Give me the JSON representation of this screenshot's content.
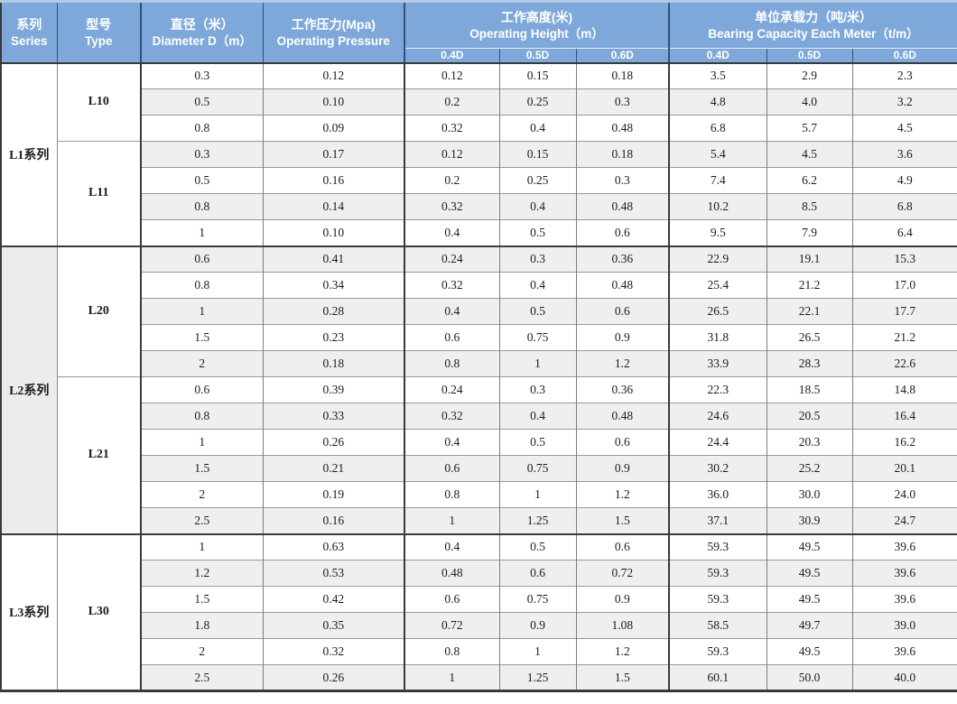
{
  "table": {
    "header": {
      "series": {
        "zh": "系列",
        "en": "Series"
      },
      "type": {
        "zh": "型号",
        "en": "Type"
      },
      "diameter": {
        "zh": "直径（米）",
        "en": "Diameter D（m）"
      },
      "pressure": {
        "zh": "工作压力(Mpa)",
        "en": "Operating Pressure"
      },
      "height": {
        "zh": "工作高度(米)",
        "en": "Operating Height（m）"
      },
      "capacity": {
        "zh": "单位承载力（吨/米）",
        "en": "Bearing Capacity Each  Meter（t/m）"
      }
    },
    "subheaders": [
      "0.4D",
      "0.5D",
      "0.6D",
      "0.4D",
      "0.5D",
      "0.6D"
    ],
    "series": [
      {
        "name": "L1系列",
        "bg": "#ffffff",
        "types": [
          {
            "name": "L10",
            "rows": [
              [
                "0.3",
                "0.12",
                "0.12",
                "0.15",
                "0.18",
                "3.5",
                "2.9",
                "2.3"
              ],
              [
                "0.5",
                "0.10",
                "0.2",
                "0.25",
                "0.3",
                "4.8",
                "4.0",
                "3.2"
              ],
              [
                "0.8",
                "0.09",
                "0.32",
                "0.4",
                "0.48",
                "6.8",
                "5.7",
                "4.5"
              ]
            ]
          },
          {
            "name": "L11",
            "rows": [
              [
                "0.3",
                "0.17",
                "0.12",
                "0.15",
                "0.18",
                "5.4",
                "4.5",
                "3.6"
              ],
              [
                "0.5",
                "0.16",
                "0.2",
                "0.25",
                "0.3",
                "7.4",
                "6.2",
                "4.9"
              ],
              [
                "0.8",
                "0.14",
                "0.32",
                "0.4",
                "0.48",
                "10.2",
                "8.5",
                "6.8"
              ],
              [
                "1",
                "0.10",
                "0.4",
                "0.5",
                "0.6",
                "9.5",
                "7.9",
                "6.4"
              ]
            ]
          }
        ]
      },
      {
        "name": "L2系列",
        "bg": "#ececec",
        "types": [
          {
            "name": "L20",
            "rows": [
              [
                "0.6",
                "0.41",
                "0.24",
                "0.3",
                "0.36",
                "22.9",
                "19.1",
                "15.3"
              ],
              [
                "0.8",
                "0.34",
                "0.32",
                "0.4",
                "0.48",
                "25.4",
                "21.2",
                "17.0"
              ],
              [
                "1",
                "0.28",
                "0.4",
                "0.5",
                "0.6",
                "26.5",
                "22.1",
                "17.7"
              ],
              [
                "1.5",
                "0.23",
                "0.6",
                "0.75",
                "0.9",
                "31.8",
                "26.5",
                "21.2"
              ],
              [
                "2",
                "0.18",
                "0.8",
                "1",
                "1.2",
                "33.9",
                "28.3",
                "22.6"
              ]
            ]
          },
          {
            "name": "L21",
            "rows": [
              [
                "0.6",
                "0.39",
                "0.24",
                "0.3",
                "0.36",
                "22.3",
                "18.5",
                "14.8"
              ],
              [
                "0.8",
                "0.33",
                "0.32",
                "0.4",
                "0.48",
                "24.6",
                "20.5",
                "16.4"
              ],
              [
                "1",
                "0.26",
                "0.4",
                "0.5",
                "0.6",
                "24.4",
                "20.3",
                "16.2"
              ],
              [
                "1.5",
                "0.21",
                "0.6",
                "0.75",
                "0.9",
                "30.2",
                "25.2",
                "20.1"
              ],
              [
                "2",
                "0.19",
                "0.8",
                "1",
                "1.2",
                "36.0",
                "30.0",
                "24.0"
              ],
              [
                "2.5",
                "0.16",
                "1",
                "1.25",
                "1.5",
                "37.1",
                "30.9",
                "24.7"
              ]
            ]
          }
        ]
      },
      {
        "name": "L3系列",
        "bg": "#ffffff",
        "types": [
          {
            "name": "L30",
            "rows": [
              [
                "1",
                "0.63",
                "0.4",
                "0.5",
                "0.6",
                "59.3",
                "49.5",
                "39.6"
              ],
              [
                "1.2",
                "0.53",
                "0.48",
                "0.6",
                "0.72",
                "59.3",
                "49.5",
                "39.6"
              ],
              [
                "1.5",
                "0.42",
                "0.6",
                "0.75",
                "0.9",
                "59.3",
                "49.5",
                "39.6"
              ],
              [
                "1.8",
                "0.35",
                "0.72",
                "0.9",
                "1.08",
                "58.5",
                "49.7",
                "39.0"
              ],
              [
                "2",
                "0.32",
                "0.8",
                "1",
                "1.2",
                "59.3",
                "49.5",
                "39.6"
              ],
              [
                "2.5",
                "0.26",
                "1",
                "1.25",
                "1.5",
                "60.1",
                "50.0",
                "40.0"
              ]
            ]
          }
        ]
      }
    ]
  },
  "colors": {
    "header_bg": "#7fa8da",
    "header_top_strip": "#b3c9e8",
    "header_line": "#31507c",
    "header_text": "#ffffff",
    "grid_major": "#3a3a3a",
    "grid_minor": "#999999",
    "stripe": "#efefef",
    "row_white": "#ffffff",
    "text": "#1c1c1c"
  }
}
